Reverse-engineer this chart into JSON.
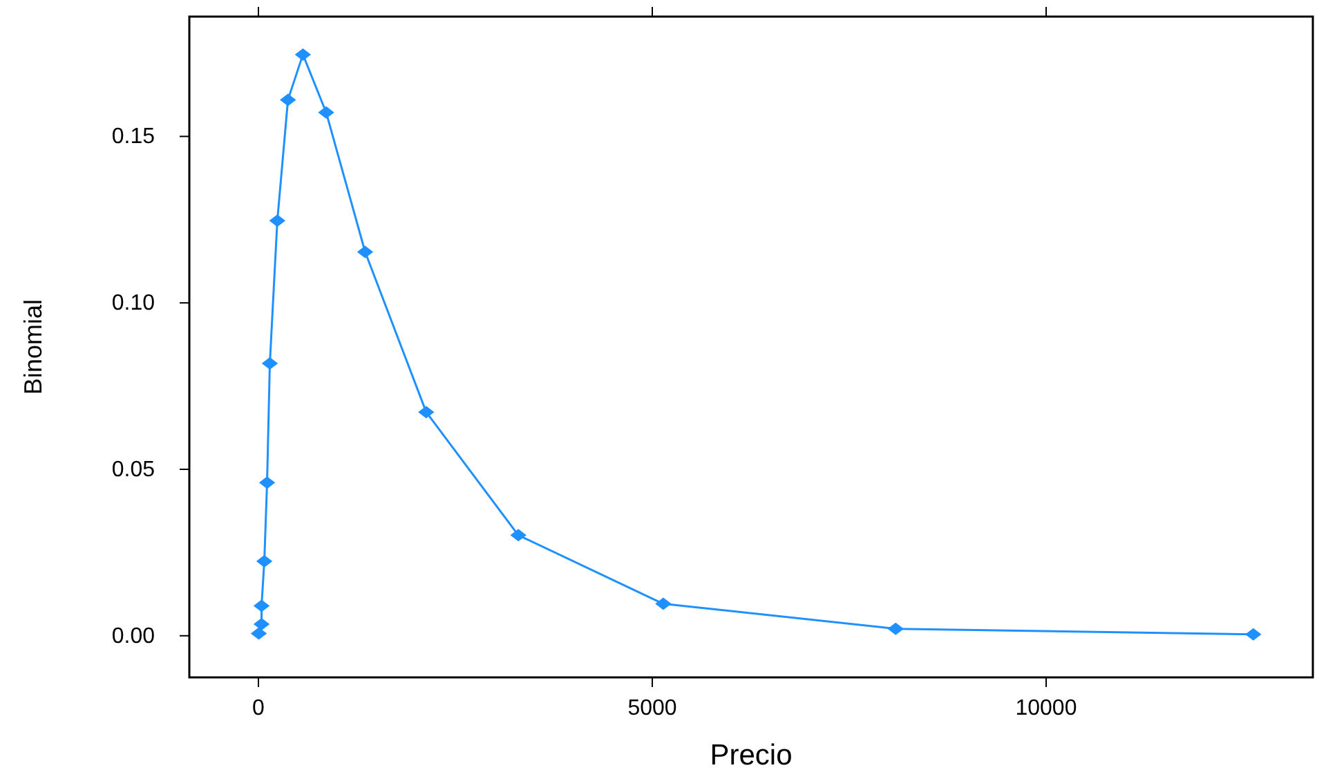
{
  "chart_data": {
    "type": "line",
    "xlabel": "Precio",
    "ylabel": "Binomial",
    "marker": "diamond",
    "xlim": [
      -877,
      13386
    ],
    "ylim": [
      -0.0125,
      0.186
    ],
    "xticks": [
      0,
      5000,
      10000
    ],
    "yticks": [
      {
        "value": 0,
        "label": "0.00"
      },
      {
        "value": 0.05,
        "label": "0.05"
      },
      {
        "value": 0.1,
        "label": "0.10"
      },
      {
        "value": 0.15,
        "label": "0.15"
      }
    ],
    "series": [
      {
        "color": "#1e90ff",
        "x": [
          5,
          40,
          40,
          75,
          110,
          145,
          240,
          375,
          565,
          860,
          1355,
          2130,
          3300,
          5140,
          8090,
          12630
        ],
        "values": [
          0.0007,
          0.0035,
          0.009,
          0.0224,
          0.046,
          0.0818,
          0.1247,
          0.161,
          0.1746,
          0.1572,
          0.1153,
          0.0672,
          0.0302,
          0.0096,
          0.0021,
          0.0004
        ]
      }
    ]
  }
}
